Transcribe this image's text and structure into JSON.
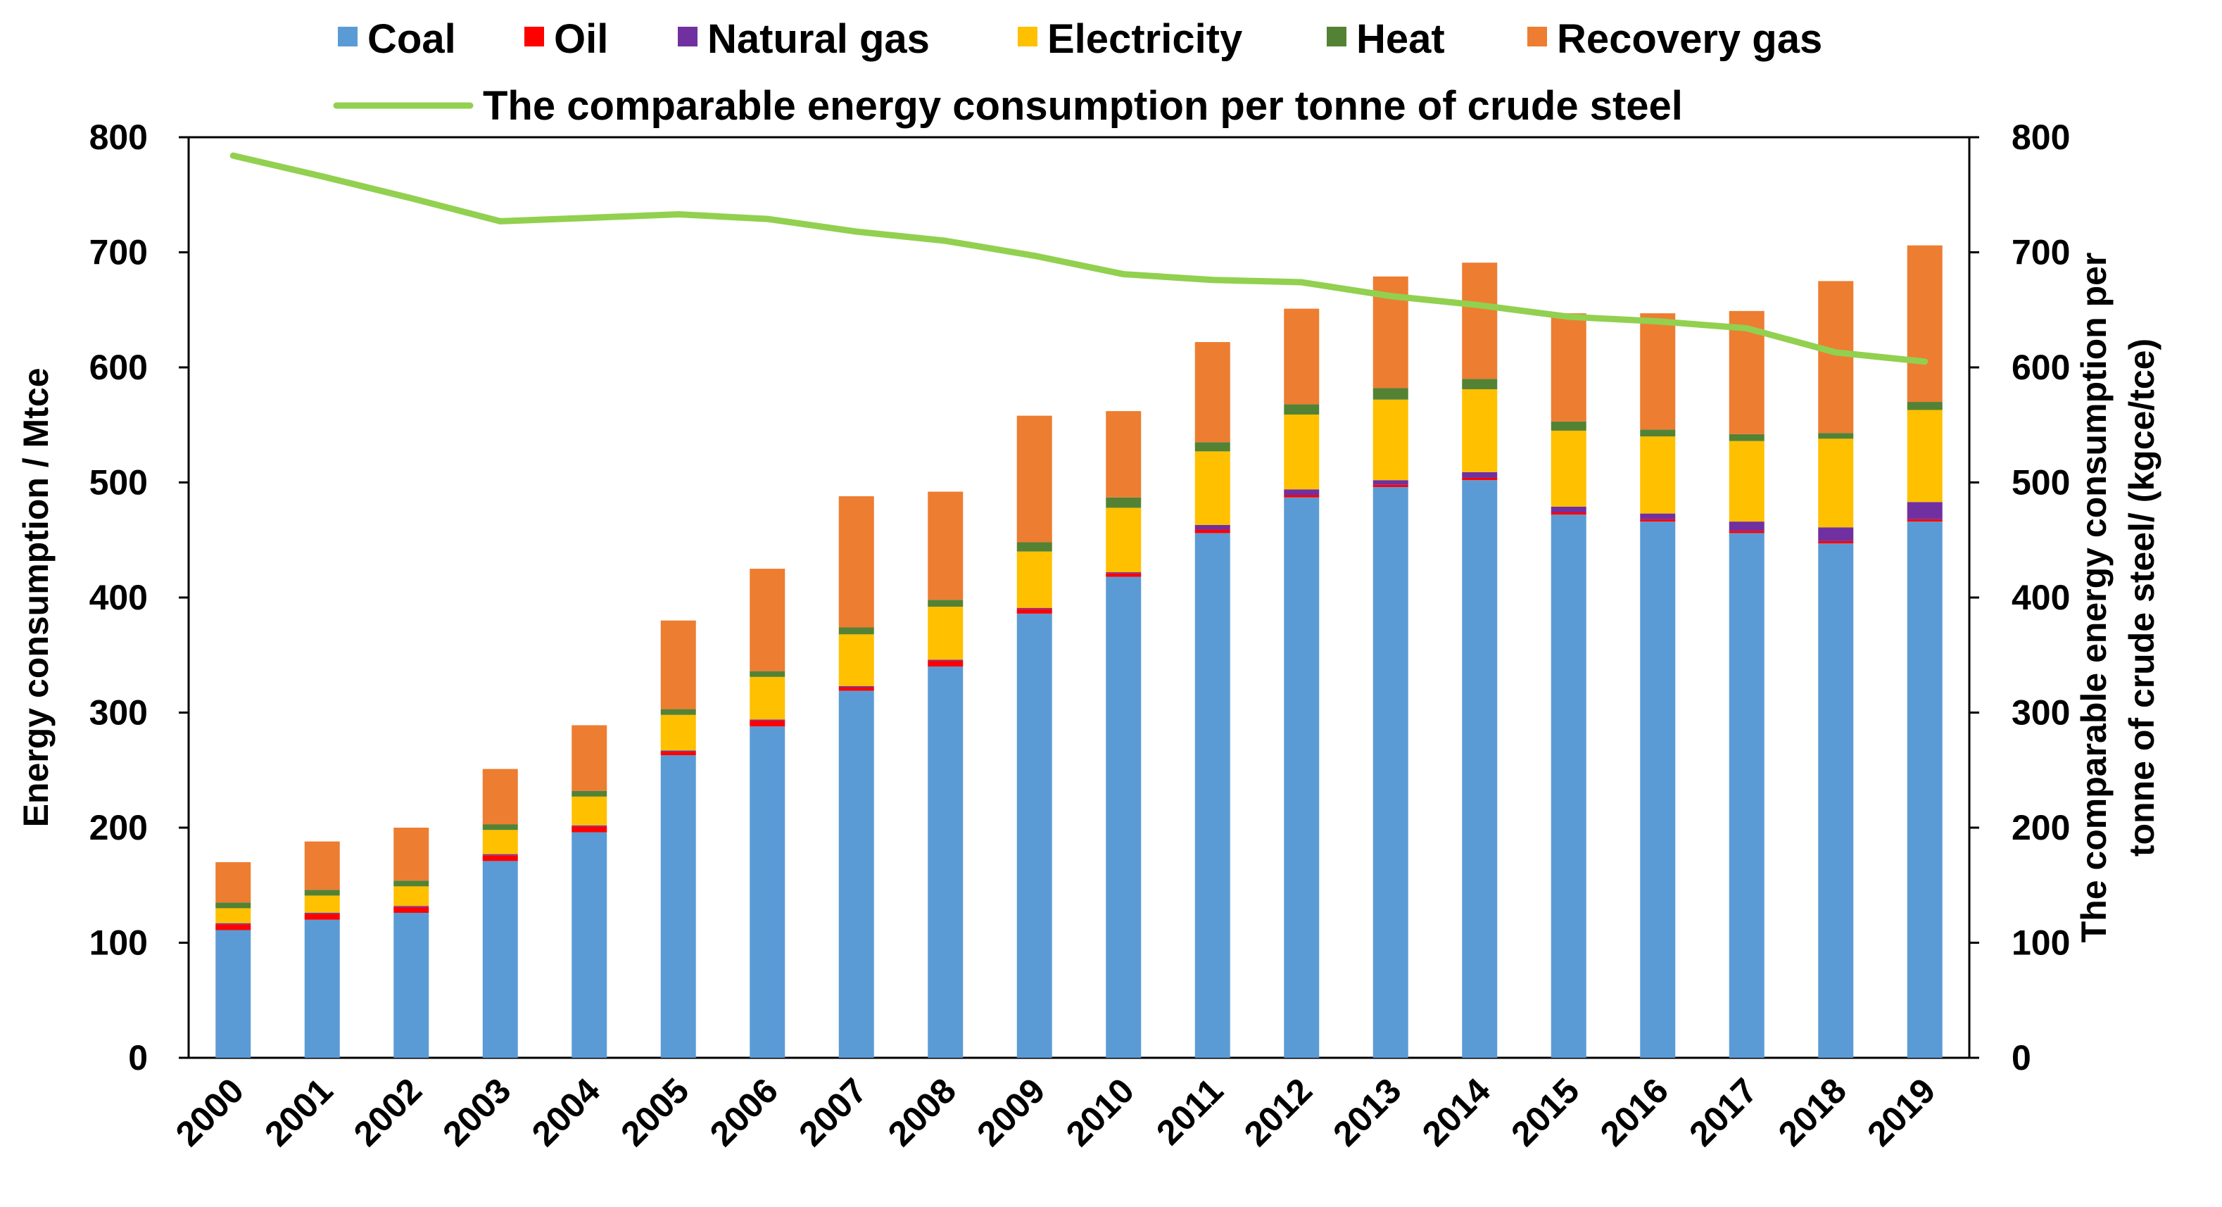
{
  "chart_data": {
    "type": "bar",
    "stacked": true,
    "categories": [
      "2000",
      "2001",
      "2002",
      "2003",
      "2004",
      "2005",
      "2006",
      "2007",
      "2008",
      "2009",
      "2010",
      "2011",
      "2012",
      "2013",
      "2014",
      "2015",
      "2016",
      "2017",
      "2018",
      "2019"
    ],
    "series": [
      {
        "name": "Coal",
        "color": "#5B9BD5",
        "values": [
          111,
          120,
          126,
          171,
          196,
          263,
          288,
          319,
          340,
          386,
          418,
          456,
          487,
          496,
          502,
          472,
          466,
          456,
          447,
          466
        ]
      },
      {
        "name": "Oil",
        "color": "#FF0000",
        "values": [
          5,
          5,
          5,
          5,
          5,
          3,
          5,
          3,
          5,
          4,
          3,
          3,
          2,
          2,
          2,
          2,
          2,
          2,
          2,
          2
        ]
      },
      {
        "name": "Natural gas",
        "color": "#7030A0",
        "values": [
          1,
          1,
          1,
          1,
          1,
          1,
          1,
          1,
          1,
          1,
          1,
          4,
          5,
          4,
          5,
          5,
          5,
          8,
          12,
          15
        ]
      },
      {
        "name": "Electricity",
        "color": "#FFC000",
        "values": [
          13,
          15,
          17,
          21,
          25,
          31,
          37,
          45,
          46,
          49,
          56,
          64,
          65,
          70,
          72,
          66,
          67,
          70,
          77,
          80
        ]
      },
      {
        "name": "Heat",
        "color": "#548235",
        "values": [
          5,
          5,
          5,
          5,
          5,
          5,
          5,
          6,
          6,
          8,
          9,
          8,
          9,
          10,
          9,
          8,
          6,
          6,
          5,
          7
        ]
      },
      {
        "name": "Recovery gas",
        "color": "#ED7D31",
        "values": [
          35,
          42,
          46,
          48,
          57,
          77,
          89,
          114,
          94,
          110,
          75,
          87,
          83,
          97,
          101,
          94,
          101,
          107,
          132,
          136
        ]
      }
    ],
    "line": {
      "name": "The comparable energy consumption per tonne of crude steel",
      "color": "#92D050",
      "axis": "right",
      "values": [
        784,
        766,
        747,
        727,
        730,
        733,
        729,
        718,
        710,
        697,
        681,
        676,
        674,
        662,
        654,
        644,
        640,
        634,
        613,
        605
      ]
    },
    "ylabel": "Energy consumption / Mtce",
    "ylabel_right": "The comparable energy consumption per tonne of crude steel/ (kgce/tce)",
    "ylim": [
      0,
      800
    ],
    "ylim_right": [
      0,
      800
    ],
    "yticks": [
      "0",
      "100",
      "200",
      "300",
      "400",
      "500",
      "600",
      "700",
      "800"
    ],
    "grid": false,
    "legend_position": "top"
  }
}
